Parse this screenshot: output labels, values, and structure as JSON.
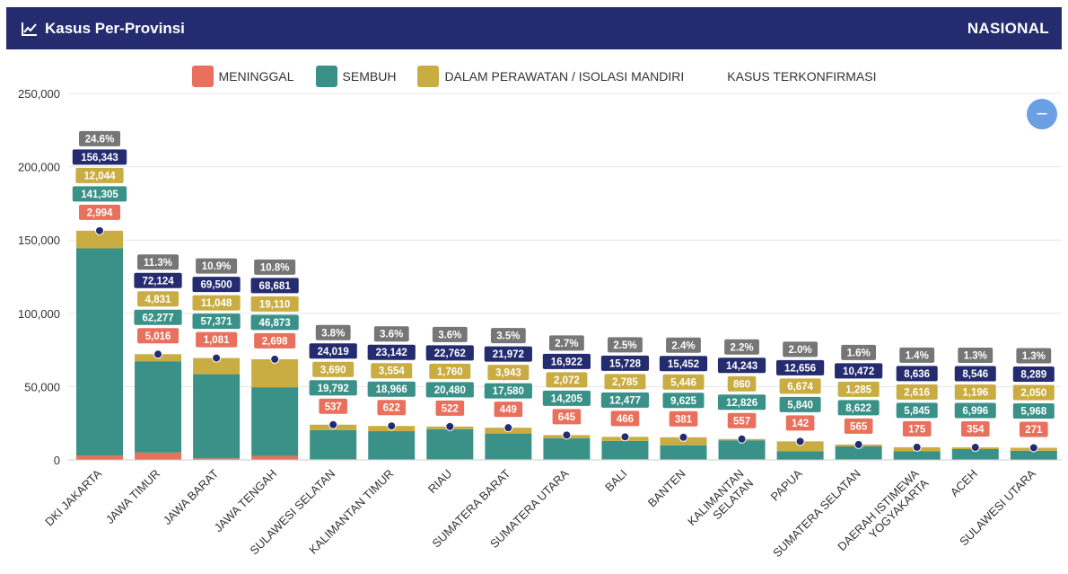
{
  "header": {
    "title": "Kasus Per-Provinsi",
    "scope": "NASIONAL",
    "title_icon": "line-chart-icon"
  },
  "zoom_button": {
    "label": "−"
  },
  "legend": [
    {
      "label": "MENINGGAL",
      "color": "#e8705c"
    },
    {
      "label": "SEMBUH",
      "color": "#3a9188"
    },
    {
      "label": "DALAM PERAWATAN / ISOLASI MANDIRI",
      "color": "#c9ad42"
    },
    {
      "label": "KASUS TERKONFIRMASI",
      "color": ""
    }
  ],
  "chart_data": {
    "type": "bar",
    "stacked": true,
    "ylim": [
      0,
      250000
    ],
    "yticks": [
      0,
      50000,
      100000,
      150000,
      200000,
      250000
    ],
    "ytick_labels": [
      "0",
      "50,000",
      "100,000",
      "150,000",
      "200,000",
      "250,000"
    ],
    "grid": true,
    "legend_position": "top",
    "categories": [
      "DKI JAKARTA",
      "JAWA TIMUR",
      "JAWA BARAT",
      "JAWA TENGAH",
      "SULAWESI SELATAN",
      "KALIMANTAN TIMUR",
      "RIAU",
      "SUMATERA BARAT",
      "SUMATERA UTARA",
      "BALI",
      "BANTEN",
      "KALIMANTAN SELATAN",
      "PAPUA",
      "SUMATERA SELATAN",
      "DAERAH ISTIMEWA YOGYAKARTA",
      "ACEH",
      "SULAWESI UTARA"
    ],
    "category_lines": [
      [
        "DKI JAKARTA"
      ],
      [
        "JAWA TIMUR"
      ],
      [
        "JAWA BARAT"
      ],
      [
        "JAWA TENGAH"
      ],
      [
        "SULAWESI SELATAN"
      ],
      [
        "KALIMANTAN TIMUR"
      ],
      [
        "RIAU"
      ],
      [
        "SUMATERA BARAT"
      ],
      [
        "SUMATERA UTARA"
      ],
      [
        "BALI"
      ],
      [
        "BANTEN"
      ],
      [
        "KALIMANTAN",
        "SELATAN"
      ],
      [
        "PAPUA"
      ],
      [
        "SUMATERA SELATAN"
      ],
      [
        "DAERAH ISTIMEWA",
        "YOGYAKARTA"
      ],
      [
        "ACEH"
      ],
      [
        "SULAWESI UTARA"
      ]
    ],
    "series": [
      {
        "name": "MENINGGAL",
        "color": "#e8705c",
        "values": [
          2994,
          5016,
          1081,
          2698,
          537,
          622,
          522,
          449,
          645,
          466,
          381,
          557,
          142,
          565,
          175,
          354,
          271
        ],
        "labels": [
          "2,994",
          "5,016",
          "1,081",
          "2,698",
          "537",
          "622",
          "522",
          "449",
          "645",
          "466",
          "381",
          "557",
          "142",
          "565",
          "175",
          "354",
          "271"
        ]
      },
      {
        "name": "SEMBUH",
        "color": "#3a9188",
        "values": [
          141305,
          62277,
          57371,
          46873,
          19792,
          18966,
          20480,
          17580,
          14205,
          12477,
          9625,
          12826,
          5840,
          8622,
          5845,
          6996,
          5968
        ],
        "labels": [
          "141,305",
          "62,277",
          "57,371",
          "46,873",
          "19,792",
          "18,966",
          "20,480",
          "17,580",
          "14,205",
          "12,477",
          "9,625",
          "12,826",
          "5,840",
          "8,622",
          "5,845",
          "6,996",
          "5,968"
        ]
      },
      {
        "name": "DALAM PERAWATAN / ISOLASI MANDIRI",
        "color": "#c9ad42",
        "values": [
          12044,
          4831,
          11048,
          19110,
          3690,
          3554,
          1760,
          3943,
          2072,
          2785,
          5446,
          860,
          6674,
          1285,
          2616,
          1196,
          2050
        ],
        "labels": [
          "12,044",
          "4,831",
          "11,048",
          "19,110",
          "3,690",
          "3,554",
          "1,760",
          "3,943",
          "2,072",
          "2,785",
          "5,446",
          "860",
          "6,674",
          "1,285",
          "2,616",
          "1,196",
          "2,050"
        ]
      }
    ],
    "confirmed": {
      "name": "KASUS TERKONFIRMASI",
      "color": "#242b6f",
      "values": [
        156343,
        72124,
        69500,
        68681,
        24019,
        23142,
        22762,
        21972,
        16922,
        15728,
        15452,
        14243,
        12656,
        10472,
        8636,
        8546,
        8289
      ],
      "labels": [
        "156,343",
        "72,124",
        "69,500",
        "68,681",
        "24,019",
        "23,142",
        "22,762",
        "21,972",
        "16,922",
        "15,728",
        "15,452",
        "14,243",
        "12,656",
        "10,472",
        "8,636",
        "8,546",
        "8,289"
      ]
    },
    "share": {
      "color": "#767676",
      "values": [
        24.6,
        11.3,
        10.9,
        10.8,
        3.8,
        3.6,
        3.6,
        3.5,
        2.7,
        2.5,
        2.4,
        2.2,
        2.0,
        1.6,
        1.4,
        1.3,
        1.3
      ],
      "labels": [
        "24.6%",
        "11.3%",
        "10.9%",
        "10.8%",
        "3.8%",
        "3.6%",
        "3.6%",
        "3.5%",
        "2.7%",
        "2.5%",
        "2.4%",
        "2.2%",
        "2.0%",
        "1.6%",
        "1.4%",
        "1.3%",
        "1.3%"
      ]
    }
  }
}
